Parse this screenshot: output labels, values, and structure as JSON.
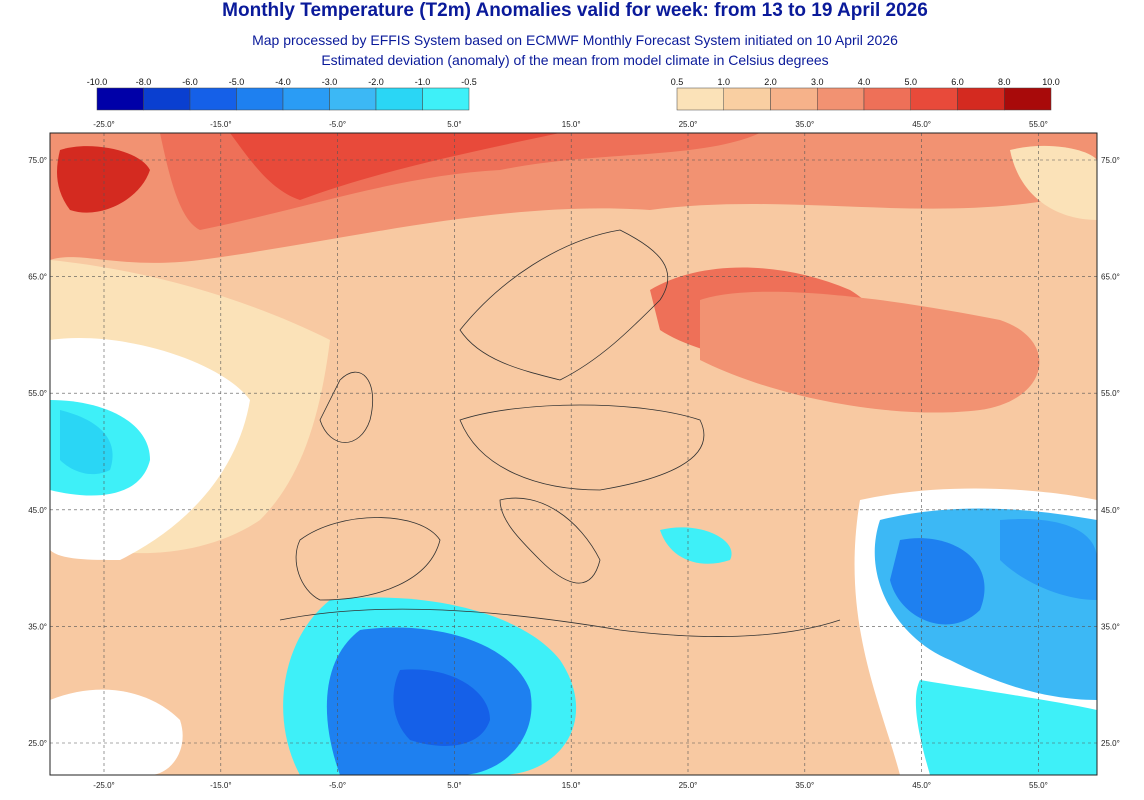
{
  "header": {
    "title": "Monthly Temperature (T2m) Anomalies valid for week: from 13 to 19 April 2026",
    "subtitle": [
      "Map processed by EFFIS System based on ECMWF Monthly Forecast System initiated on 10 April 2026",
      "Estimated deviation (anomaly) of the mean from model climate in Celsius degrees"
    ]
  },
  "colorbars": [
    {
      "labels": [
        "-10.0",
        "-8.0",
        "-6.0",
        "-5.0",
        "-4.0",
        "-3.0",
        "-2.0",
        "-1.0",
        "-0.5"
      ],
      "colors": [
        "#0000a8",
        "#0a3fd0",
        "#1560e8",
        "#1e80f0",
        "#2a9cf5",
        "#3cb8f5",
        "#2ad6f5",
        "#3ef0f8"
      ]
    },
    {
      "labels": [
        "0.5",
        "1.0",
        "2.0",
        "3.0",
        "4.0",
        "5.0",
        "6.0",
        "8.0",
        "10.0"
      ],
      "colors": [
        "#fbe2b8",
        "#f9cfa2",
        "#f6b28a",
        "#f29272",
        "#ee7058",
        "#e84a3a",
        "#d42a20",
        "#a80a0a"
      ]
    }
  ],
  "map": {
    "longitudes": [
      "-25.0°",
      "-15.0°",
      "-5.0°",
      "5.0°",
      "15.0°",
      "25.0°",
      "35.0°",
      "45.0°",
      "55.0°"
    ],
    "latitudes": [
      "75.0°",
      "65.0°",
      "55.0°",
      "45.0°",
      "35.0°",
      "25.0°"
    ]
  }
}
